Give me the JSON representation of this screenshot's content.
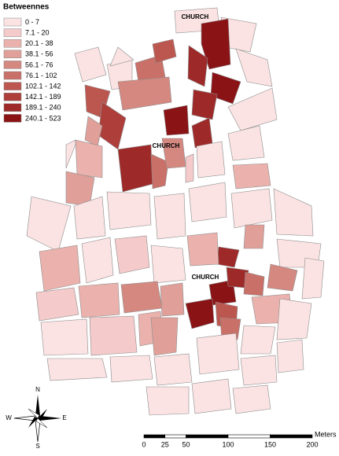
{
  "legend": {
    "title": "Betweennes",
    "items": [
      {
        "label": "0 - 7",
        "color": "#fbe3e3"
      },
      {
        "label": "7.1 - 20",
        "color": "#f4caca"
      },
      {
        "label": "20.1 - 38",
        "color": "#ebb2ad"
      },
      {
        "label": "38.1 - 56",
        "color": "#e0a099"
      },
      {
        "label": "56.1 - 76",
        "color": "#d48880"
      },
      {
        "label": "76.1 - 102",
        "color": "#c97068"
      },
      {
        "label": "102.1 - 142",
        "color": "#bc5750"
      },
      {
        "label": "142.1 - 189",
        "color": "#ad3e3a"
      },
      {
        "label": "189.1 - 240",
        "color": "#9d2a28"
      },
      {
        "label": "240.1 - 523",
        "color": "#8a1316"
      }
    ]
  },
  "labels": [
    "CHURCH",
    "CHURCH",
    "CHURCH"
  ],
  "compass": {
    "north": "N",
    "east": "E",
    "south": "S",
    "west": "W"
  },
  "scale_bar": {
    "ticks": [
      0,
      25,
      50,
      100,
      150,
      200
    ],
    "unit": "Meters"
  }
}
